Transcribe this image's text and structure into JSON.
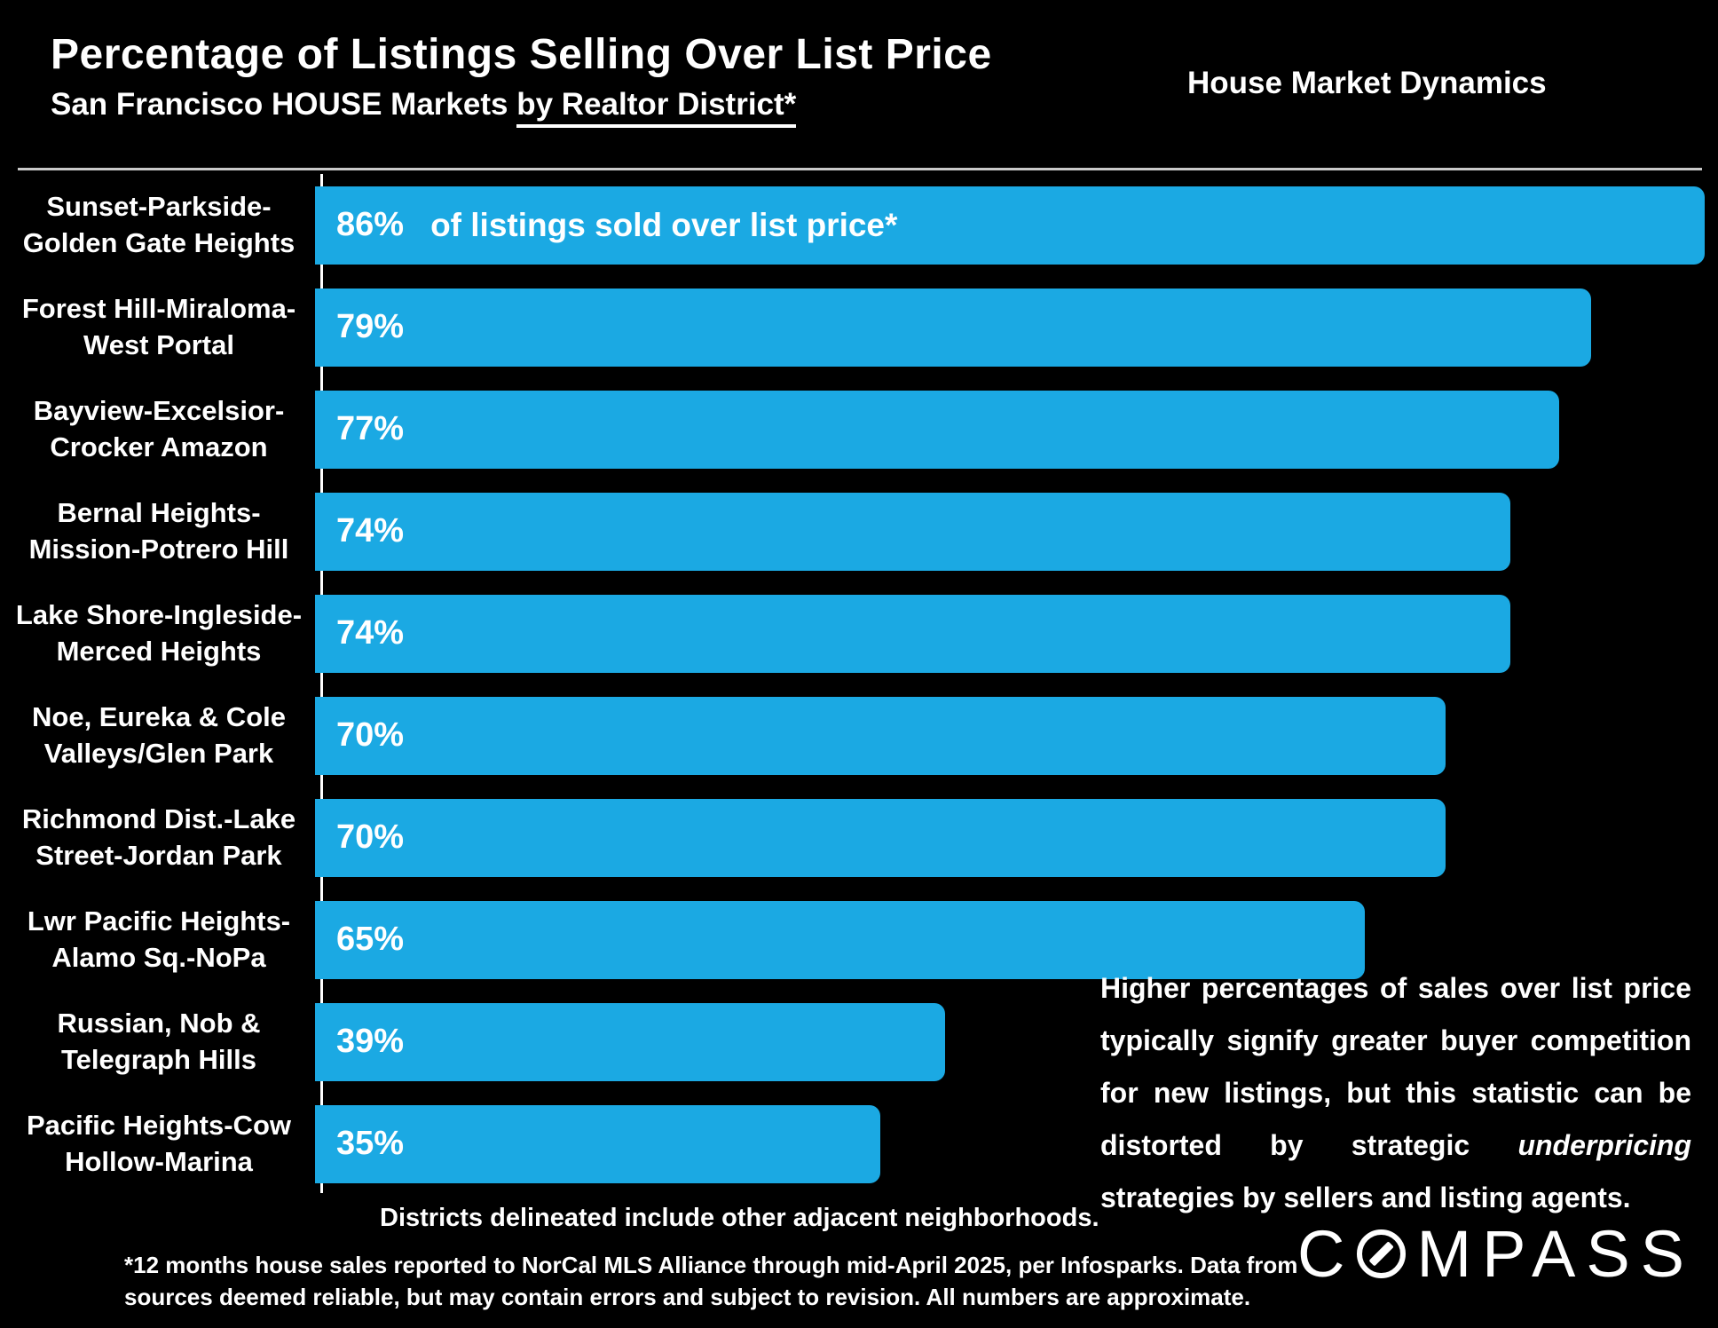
{
  "header": {
    "title": "Percentage of Listings Selling Over List Price",
    "subtitle_prefix": "San Francisco HOUSE Markets ",
    "subtitle_underlined": "by Realtor District",
    "subtitle_suffix": "*",
    "corner_label": "House Market Dynamics"
  },
  "colors": {
    "background": "#000000",
    "bar": "#1BA9E3",
    "text": "#FFFFFF",
    "divider": "#C9C9C9"
  },
  "chart_data": {
    "type": "bar",
    "orientation": "horizontal",
    "title": "Percentage of Listings Selling Over List Price",
    "subtitle": "San Francisco HOUSE Markets by Realtor District*",
    "value_unit": "% of listings sold over list price",
    "xlim": [
      0,
      87
    ],
    "grid": false,
    "legend": false,
    "bar_color": "#1BA9E3",
    "categories": [
      "Sunset-Parkside-Golden Gate Heights",
      "Forest Hill-Miraloma-West Portal",
      "Bayview-Excelsior-Crocker Amazon",
      "Bernal Heights-Mission-Potrero Hill",
      "Lake Shore-Ingleside-Merced Heights",
      "Noe, Eureka & Cole Valleys/Glen Park",
      "Richmond Dist.-Lake Street-Jordan Park",
      "Lwr Pacific Heights-Alamo Sq.-NoPa",
      "Russian, Nob & Telegraph Hills",
      "Pacific Heights-Cow Hollow-Marina"
    ],
    "values": [
      86,
      79,
      77,
      74,
      74,
      70,
      70,
      65,
      39,
      35
    ],
    "rows": [
      {
        "label_lines": [
          "Sunset-Parkside-",
          "Golden Gate Heights"
        ],
        "value": 86,
        "value_label": "86%",
        "note": "of listings sold over list price*"
      },
      {
        "label_lines": [
          "Forest Hill-Miraloma-",
          "West Portal"
        ],
        "value": 79,
        "value_label": "79%"
      },
      {
        "label_lines": [
          "Bayview-Excelsior-",
          "Crocker Amazon"
        ],
        "value": 77,
        "value_label": "77%"
      },
      {
        "label_lines": [
          "Bernal Heights-",
          "Mission-Potrero Hill"
        ],
        "value": 74,
        "value_label": "74%"
      },
      {
        "label_lines": [
          "Lake Shore-Ingleside-",
          "Merced Heights"
        ],
        "value": 74,
        "value_label": "74%"
      },
      {
        "label_lines": [
          "Noe, Eureka & Cole",
          "Valleys/Glen Park"
        ],
        "value": 70,
        "value_label": "70%"
      },
      {
        "label_lines": [
          "Richmond Dist.-Lake",
          "Street-Jordan Park"
        ],
        "value": 70,
        "value_label": "70%"
      },
      {
        "label_lines": [
          "Lwr Pacific Heights-",
          "Alamo Sq.-NoPa"
        ],
        "value": 65,
        "value_label": "65%"
      },
      {
        "label_lines": [
          "Russian, Nob &",
          "Telegraph Hills"
        ],
        "value": 39,
        "value_label": "39%"
      },
      {
        "label_lines": [
          "Pacific Heights-Cow",
          "Hollow-Marina"
        ],
        "value": 35,
        "value_label": "35%"
      }
    ]
  },
  "annotation": {
    "part1": "Higher percentages of sales over list price typically signify greater buyer competition for new listings, but this statistic can be distorted by strategic",
    "italic": "underpricing",
    "part2": "strategies by sellers and listing agents."
  },
  "notes": {
    "districts": "Districts delineated include other adjacent neighborhoods.",
    "footnote_line1": "*12 months house sales reported to NorCal MLS Alliance through mid-April 2025, per Infosparks. Data from",
    "footnote_line2": "sources deemed reliable, but may contain errors and subject to revision. All numbers are approximate."
  },
  "logo": {
    "prefix": "C",
    "suffix": "MPASS"
  }
}
